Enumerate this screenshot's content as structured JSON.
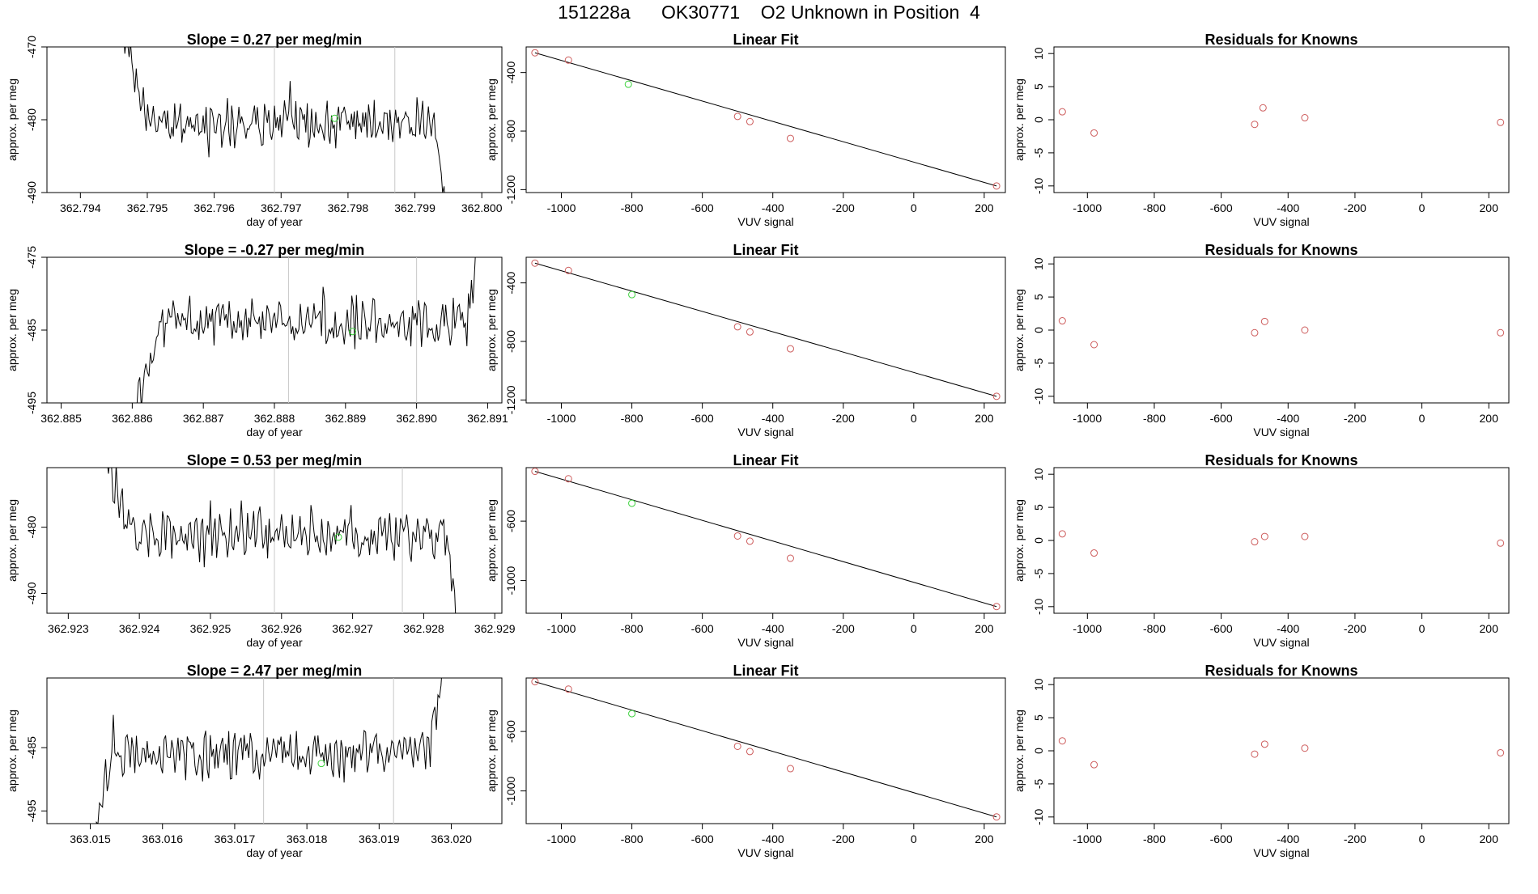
{
  "title": "151228a      OK30771    O2 Unknown in Position  4",
  "colors": {
    "trace": "#000000",
    "known": "#cd5c5c",
    "unknown": "#3cd23c",
    "frame": "#000000",
    "vline": "#c8c8c8"
  },
  "chart_data": [
    {
      "type": "line",
      "row": 1,
      "title": "Slope =  0.27  per meg/min",
      "xlabel": "day of year",
      "ylabel": "approx. per meg",
      "xlim": [
        362.7935,
        362.8003
      ],
      "ylim": [
        -490,
        -470
      ],
      "xticks": [
        "362.794",
        "362.795",
        "362.796",
        "362.797",
        "362.798",
        "362.799",
        "362.800"
      ],
      "yticks": [
        "-490",
        "-480",
        "-470"
      ],
      "trace": {
        "x_start": 362.7946,
        "x_end": 362.7995,
        "start_level": -465,
        "end_level": -495,
        "mean": -480.5,
        "amp": 2.5
      },
      "vlines": [
        362.7969,
        362.7987
      ],
      "unknown_point": {
        "x": 362.7978,
        "y": -479.8
      }
    },
    {
      "type": "scatter",
      "row": 1,
      "title": "Linear Fit",
      "xlabel": "VUV signal",
      "ylabel": "approx. per meg",
      "xlim": [
        -1100,
        260
      ],
      "ylim": [
        -1220,
        -225
      ],
      "xticks": [
        "-1000",
        "-800",
        "-600",
        "-400",
        "-200",
        "0",
        "200"
      ],
      "yticks": [
        "-1200",
        "-800",
        "-400"
      ],
      "known_points": [
        [
          -1075,
          -265
        ],
        [
          -980,
          -315
        ],
        [
          -500,
          -700
        ],
        [
          -465,
          -735
        ],
        [
          -350,
          -850
        ],
        [
          235,
          -1175
        ]
      ],
      "unknown_point": [
        -810,
        -480
      ],
      "fit_line": [
        [
          -1075,
          -265
        ],
        [
          235,
          -1175
        ]
      ]
    },
    {
      "type": "scatter",
      "row": 1,
      "title": "Residuals for Knowns",
      "xlabel": "VUV signal",
      "ylabel": "approx. per meg",
      "xlim": [
        -1100,
        260
      ],
      "ylim": [
        -11,
        11
      ],
      "xticks": [
        "-1000",
        "-800",
        "-600",
        "-400",
        "-200",
        "0",
        "200"
      ],
      "yticks": [
        "-10",
        "-5",
        "0",
        "5",
        "10"
      ],
      "known_points": [
        [
          -1075,
          1.2
        ],
        [
          -980,
          -2.0
        ],
        [
          -500,
          -0.7
        ],
        [
          -475,
          1.8
        ],
        [
          -350,
          0.3
        ],
        [
          235,
          -0.4
        ]
      ]
    },
    {
      "type": "line",
      "row": 2,
      "title": "Slope =  -0.27  per meg/min",
      "xlabel": "day of year",
      "ylabel": "approx. per meg",
      "xlim": [
        362.8848,
        362.8912
      ],
      "ylim": [
        -495,
        -475
      ],
      "xticks": [
        "362.885",
        "362.886",
        "362.887",
        "362.888",
        "362.889",
        "362.890",
        "362.891"
      ],
      "yticks": [
        "-495",
        "-485",
        "-475"
      ],
      "trace": {
        "x_start": 362.886,
        "x_end": 362.8909,
        "start_level": -498,
        "end_level": -472,
        "mean": -484,
        "amp": 2.5
      },
      "vlines": [
        362.8882,
        362.89
      ],
      "unknown_point": {
        "x": 362.8891,
        "y": -485.2
      }
    },
    {
      "type": "scatter",
      "row": 2,
      "title": "Linear Fit",
      "xlabel": "VUV signal",
      "ylabel": "approx. per meg",
      "xlim": [
        -1100,
        260
      ],
      "ylim": [
        -1220,
        -225
      ],
      "xticks": [
        "-1000",
        "-800",
        "-600",
        "-400",
        "-200",
        "0",
        "200"
      ],
      "yticks": [
        "-1200",
        "-800",
        "-400"
      ],
      "known_points": [
        [
          -1075,
          -265
        ],
        [
          -980,
          -315
        ],
        [
          -500,
          -700
        ],
        [
          -465,
          -735
        ],
        [
          -350,
          -850
        ],
        [
          235,
          -1175
        ]
      ],
      "unknown_point": [
        -800,
        -480
      ],
      "fit_line": [
        [
          -1075,
          -265
        ],
        [
          235,
          -1175
        ]
      ]
    },
    {
      "type": "scatter",
      "row": 2,
      "title": "Residuals for Knowns",
      "xlabel": "VUV signal",
      "ylabel": "approx. per meg",
      "xlim": [
        -1100,
        260
      ],
      "ylim": [
        -11,
        11
      ],
      "xticks": [
        "-1000",
        "-800",
        "-600",
        "-400",
        "-200",
        "0",
        "200"
      ],
      "yticks": [
        "-10",
        "-5",
        "0",
        "5",
        "10"
      ],
      "known_points": [
        [
          -1075,
          1.4
        ],
        [
          -980,
          -2.2
        ],
        [
          -500,
          -0.4
        ],
        [
          -470,
          1.3
        ],
        [
          -350,
          0.0
        ],
        [
          235,
          -0.4
        ]
      ]
    },
    {
      "type": "line",
      "row": 3,
      "title": "Slope =  0.53  per meg/min",
      "xlabel": "day of year",
      "ylabel": "approx. per meg",
      "xlim": [
        362.9227,
        362.9291
      ],
      "ylim": [
        -493,
        -471
      ],
      "xticks": [
        "362.923",
        "362.924",
        "362.925",
        "362.926",
        "362.927",
        "362.928",
        "362.929"
      ],
      "yticks": [
        "-490",
        "-480"
      ],
      "trace": {
        "x_start": 362.9235,
        "x_end": 362.9285,
        "start_level": -468,
        "end_level": -496,
        "mean": -481,
        "amp": 3
      },
      "vlines": [
        362.9259,
        362.9277
      ],
      "unknown_point": {
        "x": 362.9268,
        "y": -481.5
      }
    },
    {
      "type": "scatter",
      "row": 3,
      "title": "Linear Fit",
      "xlabel": "VUV signal",
      "ylabel": "approx. per meg",
      "xlim": [
        -1100,
        260
      ],
      "ylim": [
        -1220,
        -240
      ],
      "xticks": [
        "-1000",
        "-800",
        "-600",
        "-400",
        "-200",
        "0",
        "200"
      ],
      "yticks": [
        "-1000",
        "-600"
      ],
      "known_points": [
        [
          -1075,
          -265
        ],
        [
          -980,
          -315
        ],
        [
          -500,
          -700
        ],
        [
          -465,
          -735
        ],
        [
          -350,
          -850
        ],
        [
          235,
          -1175
        ]
      ],
      "unknown_point": [
        -800,
        -480
      ],
      "fit_line": [
        [
          -1075,
          -265
        ],
        [
          235,
          -1175
        ]
      ]
    },
    {
      "type": "scatter",
      "row": 3,
      "title": "Residuals for Knowns",
      "xlabel": "VUV signal",
      "ylabel": "approx. per meg",
      "xlim": [
        -1100,
        260
      ],
      "ylim": [
        -11,
        11
      ],
      "xticks": [
        "-1000",
        "-800",
        "-600",
        "-400",
        "-200",
        "0",
        "200"
      ],
      "yticks": [
        "-10",
        "-5",
        "0",
        "5",
        "10"
      ],
      "known_points": [
        [
          -1075,
          1.0
        ],
        [
          -980,
          -1.9
        ],
        [
          -500,
          -0.2
        ],
        [
          -470,
          0.6
        ],
        [
          -350,
          0.6
        ],
        [
          235,
          -0.4
        ]
      ]
    },
    {
      "type": "line",
      "row": 4,
      "title": "Slope =  2.47  per meg/min",
      "xlabel": "day of year",
      "ylabel": "approx. per meg",
      "xlim": [
        363.0144,
        363.0207
      ],
      "ylim": [
        -497,
        -474
      ],
      "xticks": [
        "363.015",
        "363.016",
        "363.017",
        "363.018",
        "363.019",
        "363.020"
      ],
      "yticks": [
        "-495",
        "-485"
      ],
      "trace": {
        "x_start": 363.015,
        "x_end": 363.0199,
        "start_level": -499,
        "end_level": -470,
        "mean": -486,
        "amp": 3
      },
      "vlines": [
        363.0174,
        363.0192
      ],
      "unknown_point": {
        "x": 363.0182,
        "y": -487.5
      }
    },
    {
      "type": "scatter",
      "row": 4,
      "title": "Linear Fit",
      "xlabel": "VUV signal",
      "ylabel": "approx. per meg",
      "xlim": [
        -1100,
        260
      ],
      "ylim": [
        -1220,
        -240
      ],
      "xticks": [
        "-1000",
        "-800",
        "-600",
        "-400",
        "-200",
        "0",
        "200"
      ],
      "yticks": [
        "-1000",
        "-600"
      ],
      "known_points": [
        [
          -1075,
          -265
        ],
        [
          -980,
          -315
        ],
        [
          -500,
          -700
        ],
        [
          -465,
          -735
        ],
        [
          -350,
          -850
        ],
        [
          235,
          -1175
        ]
      ],
      "unknown_point": [
        -800,
        -480
      ],
      "fit_line": [
        [
          -1075,
          -265
        ],
        [
          235,
          -1175
        ]
      ]
    },
    {
      "type": "scatter",
      "row": 4,
      "title": "Residuals for Knowns",
      "xlabel": "VUV signal",
      "ylabel": "approx. per meg",
      "xlim": [
        -1100,
        260
      ],
      "ylim": [
        -11,
        11
      ],
      "xticks": [
        "-1000",
        "-800",
        "-600",
        "-400",
        "-200",
        "0",
        "200"
      ],
      "yticks": [
        "-10",
        "-5",
        "0",
        "5",
        "10"
      ],
      "known_points": [
        [
          -1075,
          1.5
        ],
        [
          -980,
          -2.1
        ],
        [
          -500,
          -0.5
        ],
        [
          -470,
          1.0
        ],
        [
          -350,
          0.4
        ],
        [
          235,
          -0.3
        ]
      ]
    }
  ]
}
